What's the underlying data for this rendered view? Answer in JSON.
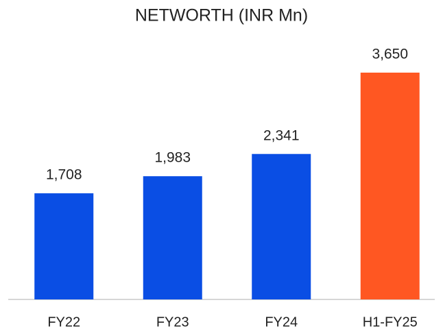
{
  "chart_data": {
    "type": "bar",
    "title": "NETWORTH (INR Mn)",
    "categories": [
      "FY22",
      "FY23",
      "FY24",
      "H1-FY25"
    ],
    "values": [
      1708,
      1983,
      2341,
      3650
    ],
    "value_labels": [
      "1,708",
      "1,983",
      "2,341",
      "3,650"
    ],
    "colors": [
      "#0a4ee4",
      "#0a4ee4",
      "#0a4ee4",
      "#ff5722"
    ]
  }
}
